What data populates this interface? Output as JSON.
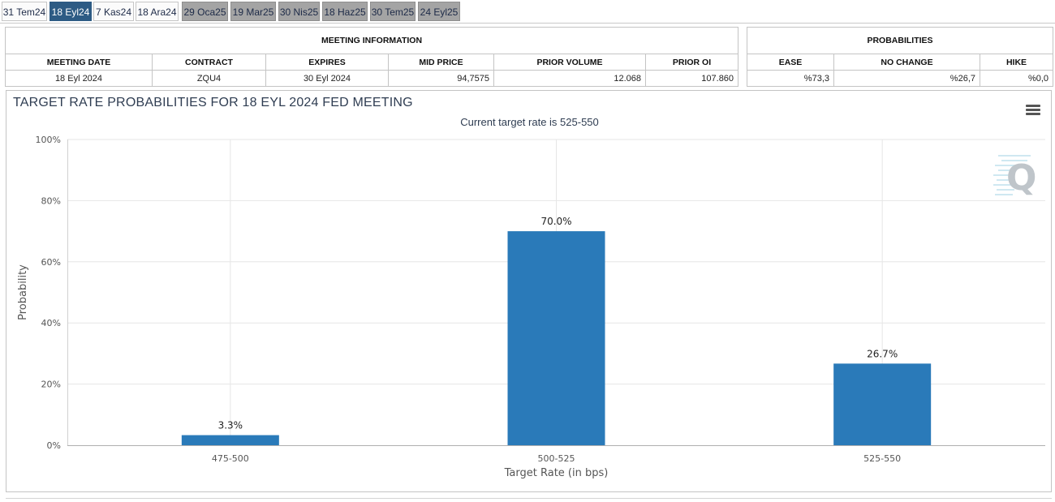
{
  "tabs": [
    {
      "label": "31 Tem24",
      "state": "light"
    },
    {
      "label": "18 Eyl24",
      "state": "active"
    },
    {
      "label": "7 Kas24",
      "state": "light"
    },
    {
      "label": "18 Ara24",
      "state": "light"
    },
    {
      "label": "29 Oca25",
      "state": "dark"
    },
    {
      "label": "19 Mar25",
      "state": "dark"
    },
    {
      "label": "30 Nis25",
      "state": "dark"
    },
    {
      "label": "18 Haz25",
      "state": "dark"
    },
    {
      "label": "30 Tem25",
      "state": "dark"
    },
    {
      "label": "24 Eyl25",
      "state": "dark"
    }
  ],
  "meeting_info": {
    "title": "MEETING INFORMATION",
    "headers": {
      "meeting_date": "MEETING DATE",
      "contract": "CONTRACT",
      "expires": "EXPIRES",
      "mid_price": "MID PRICE",
      "prior_volume": "PRIOR VOLUME",
      "prior_oi": "PRIOR OI"
    },
    "row": {
      "meeting_date": "18 Eyl 2024",
      "contract": "ZQU4",
      "expires": "30 Eyl 2024",
      "mid_price": "94,7575",
      "prior_volume": "12.068",
      "prior_oi": "107.860"
    }
  },
  "probabilities": {
    "title": "PROBABILITIES",
    "headers": {
      "ease": "EASE",
      "no_change": "NO CHANGE",
      "hike": "HIKE"
    },
    "row": {
      "ease": "%73,3",
      "no_change": "%26,7",
      "hike": "%0,0"
    }
  },
  "chart": {
    "menu_icon": "hamburger-menu-icon",
    "watermark_icon": "q-logo-icon",
    "bar_color": "#2a7ab9"
  },
  "chart_data": {
    "type": "bar",
    "title": "TARGET RATE PROBABILITIES FOR 18 EYL 2024 FED MEETING",
    "subtitle": "Current target rate is 525-550",
    "xlabel": "Target Rate (in bps)",
    "ylabel": "Probability",
    "categories": [
      "475-500",
      "500-525",
      "525-550"
    ],
    "values": [
      3.3,
      70.0,
      26.7
    ],
    "data_labels": [
      "3.3%",
      "70.0%",
      "26.7%"
    ],
    "yticks": [
      "0%",
      "20%",
      "40%",
      "60%",
      "80%",
      "100%"
    ],
    "ylim": [
      0,
      100
    ],
    "grid": true
  }
}
